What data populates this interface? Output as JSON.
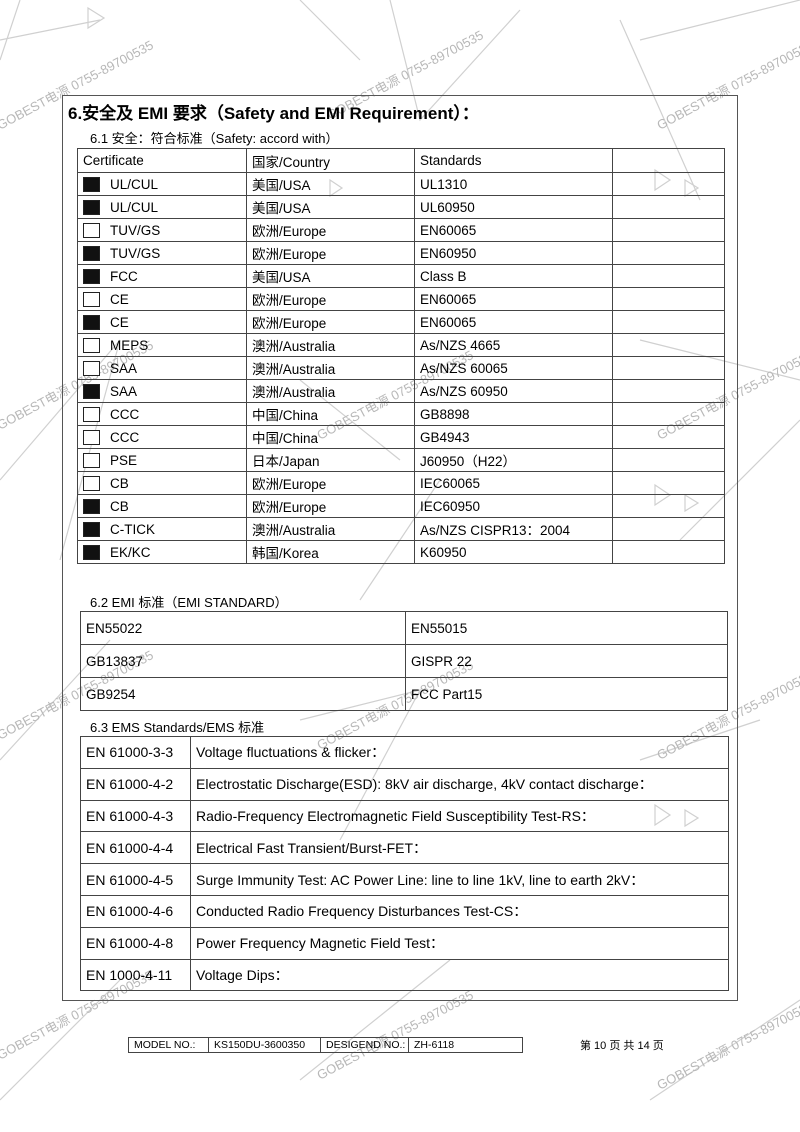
{
  "watermark": "GOBEST电源 0755-89700535",
  "title": "6.安全及 EMI 要求（Safety and EMI Requirement）：",
  "safety": {
    "heading": "6.1 安全：符合标准（Safety: accord with）",
    "header": [
      "Certificate",
      "国家/Country",
      "Standards"
    ],
    "rows": [
      {
        "checked": true,
        "certificate": "UL/CUL",
        "country": "美国/USA",
        "standard": "UL1310"
      },
      {
        "checked": true,
        "certificate": "UL/CUL",
        "country": "美国/USA",
        "standard": "UL60950"
      },
      {
        "checked": false,
        "certificate": "TUV/GS",
        "country": "欧洲/Europe",
        "standard": "EN60065"
      },
      {
        "checked": true,
        "certificate": "TUV/GS",
        "country": "欧洲/Europe",
        "standard": "EN60950"
      },
      {
        "checked": true,
        "certificate": "FCC",
        "country": "美国/USA",
        "standard": "Class B"
      },
      {
        "checked": false,
        "certificate": "CE",
        "country": "欧洲/Europe",
        "standard": "EN60065"
      },
      {
        "checked": true,
        "certificate": "CE",
        "country": "欧洲/Europe",
        "standard": "EN60065"
      },
      {
        "checked": false,
        "certificate": "MEPS",
        "country": "澳洲/Australia",
        "standard": "As/NZS 4665"
      },
      {
        "checked": false,
        "certificate": "SAA",
        "country": "澳洲/Australia",
        "standard": "As/NZS 60065"
      },
      {
        "checked": true,
        "certificate": "SAA",
        "country": "澳洲/Australia",
        "standard": "As/NZS 60950"
      },
      {
        "checked": false,
        "certificate": "CCC",
        "country": "中国/China",
        "standard": "GB8898"
      },
      {
        "checked": false,
        "certificate": "CCC",
        "country": "中国/China",
        "standard": "GB4943"
      },
      {
        "checked": false,
        "certificate": "PSE",
        "country": "日本/Japan",
        "standard": "J60950（H22）"
      },
      {
        "checked": false,
        "certificate": "CB",
        "country": "欧洲/Europe",
        "standard": "IEC60065"
      },
      {
        "checked": true,
        "certificate": "CB",
        "country": "欧洲/Europe",
        "standard": "IEC60950"
      },
      {
        "checked": true,
        "certificate": "C-TICK",
        "country": "澳洲/Australia",
        "standard": "As/NZS CISPR13：2004"
      },
      {
        "checked": true,
        "certificate": "EK/KC",
        "country": "韩国/Korea",
        "standard": "K60950"
      }
    ]
  },
  "emi": {
    "heading": "6.2 EMI 标准（EMI STANDARD）",
    "rows": [
      [
        "EN55022",
        "EN55015"
      ],
      [
        "GB13837",
        "GISPR 22"
      ],
      [
        "GB9254",
        "FCC Part15"
      ]
    ]
  },
  "ems": {
    "heading": "6.3 EMS Standards/EMS 标准",
    "rows": [
      [
        "EN 61000-3-3",
        "Voltage fluctuations & flicker："
      ],
      [
        "EN 61000-4-2",
        "Electrostatic Discharge(ESD): 8kV air discharge, 4kV contact discharge："
      ],
      [
        "EN 61000-4-3",
        "Radio-Frequency Electromagnetic Field Susceptibility Test-RS："
      ],
      [
        "EN 61000-4-4",
        "Electrical Fast Transient/Burst-FET："
      ],
      [
        "EN 61000-4-5",
        "Surge Immunity Test: AC Power Line: line to line 1kV, line to earth 2kV："
      ],
      [
        "EN 61000-4-6",
        "Conducted Radio Frequency Disturbances Test-CS："
      ],
      [
        "EN 61000-4-8",
        "Power Frequency Magnetic Field Test："
      ],
      [
        "EN 1000-4-11",
        "Voltage Dips："
      ]
    ]
  },
  "footer": {
    "model_label": "MODEL NO.:",
    "model": "KS150DU-3600350",
    "design_label": "DESIGEND NO.:",
    "design": "ZH-6118",
    "page": "第 10 页 共 14 页"
  }
}
